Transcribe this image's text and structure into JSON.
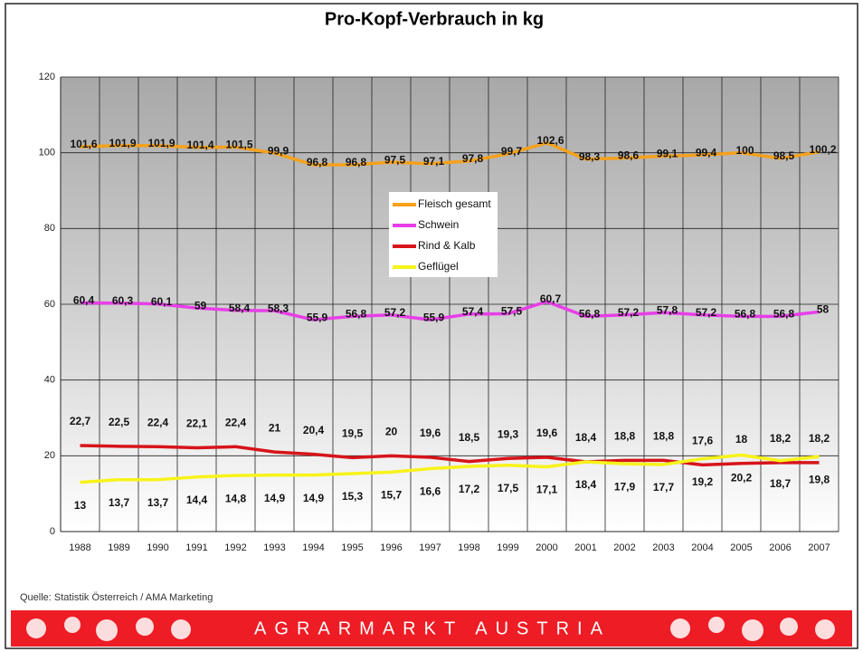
{
  "chart_data": {
    "type": "line",
    "title": "Pro-Kopf-Verbrauch in kg",
    "source": "Quelle: Statistik Österreich / AMA Marketing",
    "banner": "AGRARMARKT AUSTRIA",
    "categories": [
      "1988",
      "1989",
      "1990",
      "1991",
      "1992",
      "1993",
      "1994",
      "1995",
      "1996",
      "1997",
      "1998",
      "1999",
      "2000",
      "2001",
      "2002",
      "2003",
      "2004",
      "2005",
      "2006",
      "2007"
    ],
    "ylim": [
      0,
      120
    ],
    "yticks": [
      0,
      20,
      40,
      60,
      80,
      100,
      120
    ],
    "grid": true,
    "series": [
      {
        "name": "Fleisch gesamt",
        "color": "#f5a11c",
        "values": [
          101.6,
          101.9,
          101.9,
          101.4,
          101.5,
          99.9,
          96.8,
          96.8,
          97.5,
          97.1,
          97.8,
          99.7,
          102.6,
          98.3,
          98.6,
          99.1,
          99.4,
          100,
          98.5,
          100.2
        ],
        "value_labels": [
          "101,6",
          "101,9",
          "101,9",
          "101,4",
          "101,5",
          "99,9",
          "96,8",
          "96,8",
          "97,5",
          "97,1",
          "97,8",
          "99,7",
          "102,6",
          "98,3",
          "98,6",
          "99,1",
          "99,4",
          "100",
          "98,5",
          "100,2"
        ]
      },
      {
        "name": "Schwein",
        "color": "#e83ee8",
        "values": [
          60.4,
          60.3,
          60.1,
          59,
          58.4,
          58.3,
          55.9,
          56.8,
          57.2,
          55.9,
          57.4,
          57.5,
          60.7,
          56.8,
          57.2,
          57.8,
          57.2,
          56.8,
          56.8,
          58
        ],
        "value_labels": [
          "60,4",
          "60,3",
          "60,1",
          "59",
          "58,4",
          "58,3",
          "55,9",
          "56,8",
          "57,2",
          "55,9",
          "57,4",
          "57,5",
          "60,7",
          "56,8",
          "57,2",
          "57,8",
          "57,2",
          "56,8",
          "56,8",
          "58"
        ]
      },
      {
        "name": "Rind & Kalb",
        "color": "#d7141a",
        "values": [
          22.7,
          22.5,
          22.4,
          22.1,
          22.4,
          21,
          20.4,
          19.5,
          20,
          19.6,
          18.5,
          19.3,
          19.6,
          18.4,
          18.8,
          18.8,
          17.6,
          18,
          18.2,
          18.2
        ],
        "value_labels": [
          "22,7",
          "22,5",
          "22,4",
          "22,1",
          "22,4",
          "21",
          "20,4",
          "19,5",
          "20",
          "19,6",
          "18,5",
          "19,3",
          "19,6",
          "18,4",
          "18,8",
          "18,8",
          "17,6",
          "18",
          "18,2",
          "18,2"
        ]
      },
      {
        "name": "Geflügel",
        "color": "#f7f31a",
        "values": [
          13,
          13.7,
          13.7,
          14.4,
          14.8,
          14.9,
          14.9,
          15.3,
          15.7,
          16.6,
          17.2,
          17.5,
          17.1,
          18.4,
          17.9,
          17.7,
          19.2,
          20.2,
          18.7,
          19.8
        ],
        "value_labels": [
          "13",
          "13,7",
          "13,7",
          "14,4",
          "14,8",
          "14,9",
          "14,9",
          "15,3",
          "15,7",
          "16,6",
          "17,2",
          "17,5",
          "17,1",
          "18,4",
          "17,9",
          "17,7",
          "19,2",
          "20,2",
          "18,7",
          "19,8"
        ]
      }
    ]
  }
}
